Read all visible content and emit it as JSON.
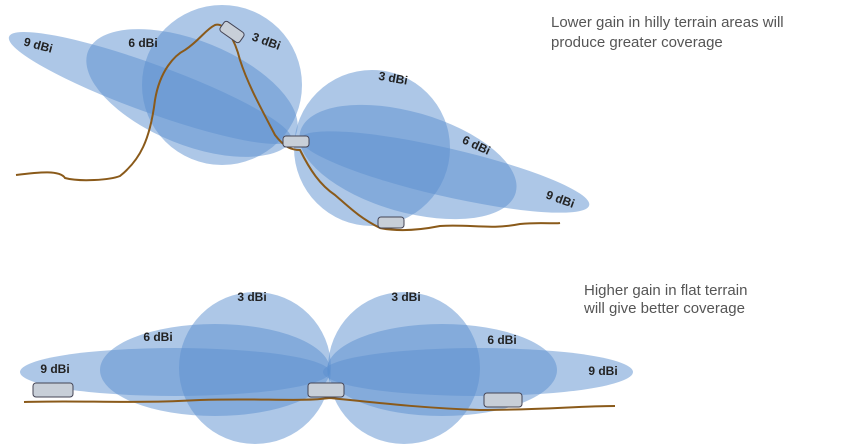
{
  "top": {
    "caption": [
      "Lower gain in hilly terrain areas will",
      "produce greater coverage"
    ],
    "labels": [
      "9 dBi",
      "6 dBi",
      "3 dBi",
      "3 dBi",
      "6 dBi",
      "9 dBi"
    ]
  },
  "bottom": {
    "caption": [
      "Higher gain in flat terrain",
      "will give better coverage"
    ],
    "labels": [
      "9 dBi",
      "6 dBi",
      "3 dBi",
      "3 dBi",
      "6 dBi",
      "9 dBi"
    ]
  }
}
